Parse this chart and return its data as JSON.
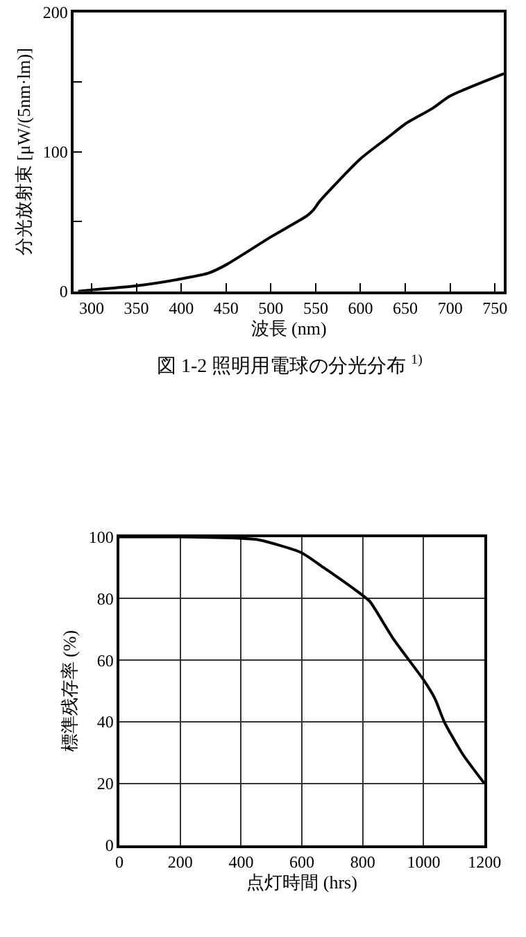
{
  "chart_data": [
    {
      "type": "line",
      "xlabel": "波長 (nm)",
      "ylabel": "分光放射束 [μW/(5nm·lm)]",
      "annotations": [
        "図 1-2 照明用電球の分光分布 $^{1)}$"
      ],
      "grid": false,
      "marker": "none",
      "line_style": "solid",
      "x": [
        285,
        300,
        350,
        400,
        430,
        450,
        500,
        540,
        547,
        555,
        600,
        630,
        650,
        680,
        700,
        760
      ],
      "series": [
        {
          "color": "#000000",
          "values": [
            0,
            1,
            4,
            9,
            13,
            19,
            39,
            54,
            58,
            65,
            95,
            110,
            120,
            131,
            140,
            156
          ]
        }
      ],
      "xlim": [
        280,
        760
      ],
      "xticks": [
        300,
        350,
        400,
        450,
        500,
        550,
        600,
        650,
        700,
        750
      ],
      "ylim": [
        0,
        200
      ],
      "yticks": [
        0,
        {
          "value": 50,
          "label": null
        },
        100,
        {
          "value": 150,
          "label": null
        },
        200
      ]
    },
    {
      "type": "line",
      "xlabel": "点灯時間 (hrs)",
      "ylabel": "標準残存率 (%)",
      "grid": true,
      "marker": "none",
      "line_style": "solid",
      "x": [
        0,
        200,
        400,
        460,
        596,
        672,
        800,
        824,
        900,
        1000,
        1037,
        1068,
        1128,
        1200
      ],
      "series": [
        {
          "color": "#000000",
          "values": [
            100,
            100,
            99.5,
            99,
            95,
            90,
            81,
            79,
            67,
            53.6,
            47.6,
            40,
            29.6,
            20
          ]
        }
      ],
      "xlim": [
        0,
        1200
      ],
      "xticks": [
        0,
        200,
        400,
        600,
        800,
        1000,
        1200
      ],
      "ylim": [
        0,
        100
      ],
      "yticks": [
        0,
        20,
        40,
        60,
        80,
        100
      ]
    }
  ]
}
